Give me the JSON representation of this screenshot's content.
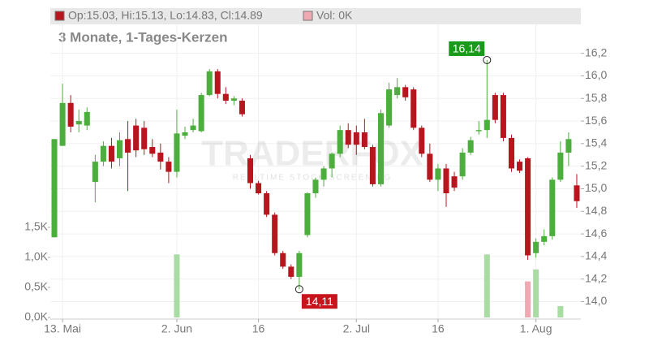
{
  "chart_data": {
    "type": "candlestick",
    "ohlc_label": "Op:15.03, Hi:15.13, Lo:14.83, Cl:14.89",
    "volume_label": "Vol: 0K",
    "subtitle": "3 Monate, 1-Tages-Kerzen",
    "watermark": "TRADERFOX",
    "watermark_sub": "REALTIME STOCK SCREENING",
    "up_color": "#4cae3c",
    "down_color": "#b8161e",
    "up_volume_color": "#a9dca2",
    "down_volume_color": "#f0a9b2",
    "categories": [
      null,
      "13. Mai",
      null,
      null,
      null,
      null,
      null,
      null,
      null,
      null,
      null,
      null,
      null,
      null,
      null,
      "2. Jun",
      null,
      null,
      null,
      null,
      null,
      null,
      null,
      null,
      null,
      "16",
      null,
      null,
      null,
      null,
      null,
      null,
      null,
      null,
      null,
      null,
      null,
      "2. Jul",
      null,
      null,
      null,
      null,
      null,
      null,
      null,
      null,
      null,
      "16",
      null,
      null,
      null,
      null,
      null,
      null,
      null,
      null,
      null,
      null,
      null,
      "1. Aug",
      null,
      null,
      null,
      null,
      null
    ],
    "open": [
      14.57,
      15.38,
      15.76,
      15.57,
      15.56,
      15.06,
      15.24,
      15.38,
      15.27,
      15.44,
      15.56,
      15.54,
      15.37,
      15.32,
      15.24,
      15.15,
      15.47,
      15.52,
      15.51,
      15.83,
      16.04,
      15.84,
      15.78,
      15.78,
      15.27,
      15.05,
      14.96,
      14.77,
      14.43,
      14.31,
      14.22,
      14.59,
      14.96,
      15.08,
      15.18,
      15.31,
      15.52,
      15.5,
      15.5,
      15.37,
      15.04,
      15.56,
      15.83,
      15.9,
      15.88,
      15.54,
      15.31,
      15.08,
      15.18,
      15.11,
      15.11,
      15.32,
      15.51,
      15.52,
      15.83,
      15.83,
      15.45,
      15.24,
      15.27,
      14.43,
      14.53,
      14.58,
      15.08,
      15.32,
      15.03
    ],
    "high": [
      15.44,
      15.93,
      15.83,
      15.7,
      15.72,
      15.3,
      15.42,
      15.45,
      15.5,
      15.6,
      15.62,
      15.6,
      15.44,
      15.4,
      15.28,
      15.7,
      15.55,
      15.62,
      15.85,
      16.06,
      16.06,
      15.9,
      15.82,
      15.8,
      15.3,
      15.07,
      14.98,
      14.79,
      14.45,
      14.33,
      14.45,
      14.97,
      15.1,
      15.2,
      15.32,
      15.56,
      15.58,
      15.56,
      15.62,
      15.39,
      15.7,
      15.94,
      15.98,
      15.92,
      15.9,
      15.56,
      15.4,
      15.22,
      15.22,
      15.15,
      15.36,
      15.46,
      15.6,
      16.14,
      15.85,
      15.85,
      15.48,
      15.26,
      15.28,
      14.56,
      14.64,
      15.1,
      15.42,
      15.5,
      15.13
    ],
    "low": [
      14.57,
      15.38,
      15.5,
      15.5,
      15.52,
      14.88,
      15.2,
      15.18,
      15.2,
      14.98,
      15.28,
      15.3,
      15.28,
      15.17,
      15.05,
      15.1,
      15.44,
      15.5,
      15.5,
      15.82,
      15.8,
      15.75,
      15.74,
      15.64,
      15.0,
      14.95,
      14.75,
      14.41,
      14.29,
      14.2,
      14.11,
      14.57,
      14.92,
      15.02,
      15.1,
      15.28,
      15.36,
      15.3,
      15.35,
      15.02,
      15.02,
      15.54,
      15.8,
      15.78,
      15.52,
      15.28,
      15.06,
      14.98,
      14.84,
      14.98,
      15.08,
      15.3,
      15.48,
      15.45,
      15.58,
      15.42,
      15.15,
      15.14,
      14.37,
      14.39,
      14.5,
      14.55,
      15.06,
      15.2,
      14.83
    ],
    "close": [
      15.44,
      15.76,
      15.55,
      15.6,
      15.68,
      15.24,
      15.38,
      15.24,
      15.43,
      15.32,
      15.34,
      15.35,
      15.31,
      15.24,
      15.15,
      15.49,
      15.5,
      15.56,
      15.83,
      16.04,
      15.84,
      15.78,
      15.8,
      15.66,
      15.05,
      14.96,
      14.77,
      14.43,
      14.31,
      14.22,
      14.43,
      14.96,
      15.08,
      15.18,
      15.31,
      15.52,
      15.39,
      15.39,
      15.37,
      15.04,
      15.67,
      15.88,
      15.9,
      15.81,
      15.54,
      15.31,
      15.08,
      15.18,
      14.96,
      15.01,
      15.32,
      15.43,
      15.52,
      15.61,
      15.61,
      15.45,
      15.18,
      15.16,
      14.41,
      14.53,
      14.58,
      15.08,
      15.32,
      15.44,
      14.89
    ],
    "volume": [
      0,
      0,
      0,
      0,
      0,
      0,
      0,
      0,
      0,
      0,
      0,
      0,
      0,
      0,
      0,
      1050,
      0,
      0,
      0,
      0,
      0,
      0,
      0,
      0,
      0,
      0,
      0,
      0,
      0,
      0,
      0,
      0,
      0,
      0,
      0,
      0,
      0,
      0,
      0,
      0,
      0,
      0,
      0,
      0,
      0,
      0,
      0,
      0,
      0,
      0,
      0,
      0,
      0,
      1050,
      0,
      0,
      0,
      0,
      600,
      800,
      0,
      0,
      190,
      0,
      0
    ],
    "annotations": [
      {
        "label": "16,14",
        "value": 16.14
      },
      {
        "label": "14,11",
        "value": 14.11
      }
    ],
    "ylim": [
      13.86,
      16.6
    ],
    "yticks": [
      {
        "value": 14.0,
        "label": "14,0"
      },
      {
        "value": 14.2,
        "label": "14,2"
      },
      {
        "value": 14.4,
        "label": "14,4"
      },
      {
        "value": 14.6,
        "label": "14,6"
      },
      {
        "value": 14.8,
        "label": "14,8"
      },
      {
        "value": 15.0,
        "label": "15,0"
      },
      {
        "value": 15.2,
        "label": "15,2"
      },
      {
        "value": 15.4,
        "label": "15,4"
      },
      {
        "value": 15.6,
        "label": "15,6"
      },
      {
        "value": 15.8,
        "label": "15,8"
      },
      {
        "value": 16.0,
        "label": "16,0"
      },
      {
        "value": 16.2,
        "label": "16,2"
      }
    ],
    "y2lim": [
      0,
      5150
    ],
    "y2ticks": [
      {
        "value": 0,
        "label": "0,0K"
      },
      {
        "value": 500,
        "label": "0,5K"
      },
      {
        "value": 1000,
        "label": "1,0K"
      },
      {
        "value": 1500,
        "label": "1,5K"
      }
    ],
    "grid": true
  }
}
